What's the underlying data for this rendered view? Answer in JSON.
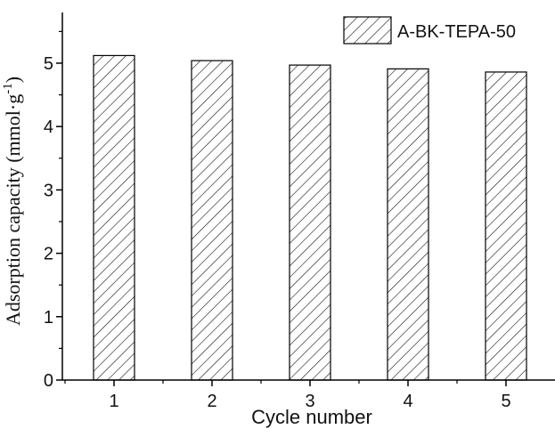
{
  "chart_data": {
    "type": "bar",
    "title": "",
    "categories": [
      "1",
      "2",
      "3",
      "4",
      "5"
    ],
    "series": [
      {
        "name": "A-BK-TEPA-50",
        "values": [
          5.12,
          5.04,
          4.97,
          4.91,
          4.86
        ]
      }
    ],
    "xlabel": "Cycle number",
    "ylabel": {
      "main": "Adsorption capacity (mmol·g",
      "sup": "-1",
      "end": ")"
    },
    "ylim": [
      0,
      5.8
    ],
    "yticks": [
      "0",
      "1",
      "2",
      "3",
      "4",
      "5"
    ],
    "legend_position": "top-right",
    "grid": false,
    "bar_fill_pattern": "diagonal-hatch",
    "colors": {
      "axis": "#000000",
      "bar_stroke": "#000000",
      "hatch": "#000000",
      "background": "#ffffff"
    }
  }
}
